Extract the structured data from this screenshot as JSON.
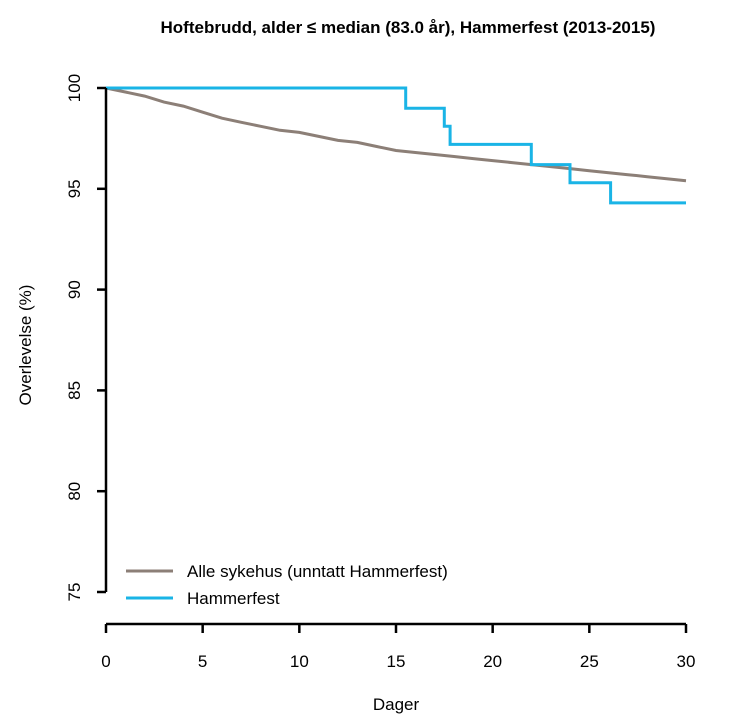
{
  "chart_data": {
    "type": "line",
    "title": "Hoftebrudd, alder ≤ median (83.0 år), Hammerfest (2013-2015)",
    "xlabel": "Dager",
    "ylabel": "Overlevelse (%)",
    "xlim": [
      0,
      30
    ],
    "ylim": [
      75,
      100
    ],
    "x_ticks": [
      "0",
      "5",
      "10",
      "15",
      "20",
      "25",
      "30"
    ],
    "y_ticks": [
      "75",
      "80",
      "85",
      "90",
      "95",
      "100"
    ],
    "grid": false,
    "legend_position": "bottom-left",
    "series": [
      {
        "name": "Alle sykehus (unntatt Hammerfest)",
        "color": "#8c7f77",
        "step": false,
        "x": [
          0,
          1,
          2,
          3,
          4,
          5,
          6,
          7,
          8,
          9,
          10,
          11,
          12,
          13,
          14,
          15,
          16,
          17,
          18,
          19,
          20,
          21,
          22,
          23,
          24,
          25,
          26,
          27,
          28,
          29,
          30
        ],
        "y": [
          100,
          99.8,
          99.6,
          99.3,
          99.1,
          98.8,
          98.5,
          98.3,
          98.1,
          97.9,
          97.8,
          97.6,
          97.4,
          97.3,
          97.1,
          96.9,
          96.8,
          96.7,
          96.6,
          96.5,
          96.4,
          96.3,
          96.2,
          96.1,
          96.0,
          95.9,
          95.8,
          95.7,
          95.6,
          95.5,
          95.4
        ]
      },
      {
        "name": "Hammerfest",
        "color": "#1ab4e6",
        "step": true,
        "x": [
          0,
          15.5,
          17.5,
          17.8,
          22,
          24,
          26.1,
          30
        ],
        "y": [
          100,
          99.0,
          98.1,
          97.2,
          96.2,
          95.3,
          94.3,
          94.3
        ]
      }
    ]
  }
}
